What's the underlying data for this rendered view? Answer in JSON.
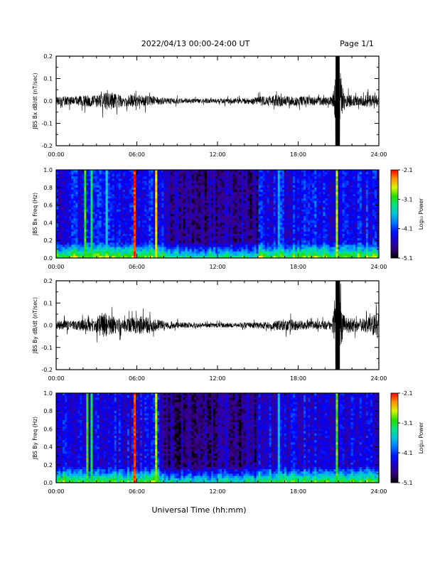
{
  "header": {
    "title": "2022/04/13  00:00-24:00 UT",
    "page": "Page 1/1"
  },
  "footer": {
    "xlabel": "Universal Time (hh:mm)"
  },
  "colorbar": {
    "label": "Log₁₀ Power",
    "tick_labels": [
      "-2.1",
      "-3.1",
      "-4.1",
      "-5.1"
    ],
    "range": [
      -5.1,
      -2.1
    ],
    "colormap": "rainbow"
  },
  "chart_data": [
    {
      "type": "line",
      "ylabel": "JBS Bx dB/dt (nT/sec)",
      "x_unit": "hours UT",
      "xlim": [
        0,
        24
      ],
      "ylim": [
        -0.2,
        0.2
      ],
      "x_tick_labels": [
        "00:00",
        "06:00",
        "12:00",
        "18:00",
        "24:00"
      ],
      "y_tick_labels": [
        "0.2",
        "0.1",
        "0.0",
        "-0.1",
        "-0.2"
      ],
      "x": [
        0.0,
        1.0,
        2.0,
        3.0,
        3.8,
        5.0,
        6.0,
        7.0,
        8.0,
        10.0,
        12.0,
        14.0,
        15.5,
        16.5,
        17.5,
        18.5,
        19.5,
        20.5,
        20.9,
        21.5,
        22.5,
        23.5,
        24.0
      ],
      "envelope": [
        0.03,
        0.03,
        0.035,
        0.04,
        0.06,
        0.035,
        0.04,
        0.035,
        0.02,
        0.015,
        0.015,
        0.02,
        0.03,
        0.035,
        0.03,
        0.03,
        0.025,
        0.03,
        0.2,
        0.04,
        0.035,
        0.04,
        0.04
      ]
    },
    {
      "type": "heatmap",
      "ylabel": "JBS Bx Freq (Hz)",
      "xlim": [
        0,
        24
      ],
      "ylim": [
        0.0,
        1.0
      ],
      "x_tick_labels": [
        "00:00",
        "06:00",
        "12:00",
        "18:00",
        "24:00"
      ],
      "y_tick_labels": [
        "1.0",
        "0.8",
        "0.6",
        "0.4",
        "0.2",
        "0.0"
      ],
      "value_unit": "log10 power",
      "background_level": -4.3,
      "vertical_streaks": [
        {
          "t": 2.2,
          "level": -3.0
        },
        {
          "t": 2.6,
          "level": -3.2
        },
        {
          "t": 3.7,
          "level": -3.5
        },
        {
          "t": 5.8,
          "level": -2.2
        },
        {
          "t": 7.4,
          "level": -2.6
        },
        {
          "t": 16.5,
          "level": -3.7
        },
        {
          "t": 20.9,
          "level": -2.8
        }
      ]
    },
    {
      "type": "line",
      "ylabel": "JBS By dB/dt (nT/sec)",
      "x_unit": "hours UT",
      "xlim": [
        0,
        24
      ],
      "ylim": [
        -0.2,
        0.2
      ],
      "x_tick_labels": [
        "00:00",
        "06:00",
        "12:00",
        "18:00",
        "24:00"
      ],
      "y_tick_labels": [
        "0.2",
        "0.1",
        "0.0",
        "-0.1",
        "-0.2"
      ],
      "x": [
        0.0,
        1.0,
        2.0,
        3.0,
        3.5,
        4.0,
        5.0,
        6.5,
        7.5,
        9.0,
        11.0,
        13.0,
        15.0,
        16.0,
        17.0,
        18.5,
        19.5,
        20.5,
        20.9,
        21.5,
        22.5,
        23.5,
        24.0
      ],
      "envelope": [
        0.03,
        0.03,
        0.035,
        0.05,
        0.09,
        0.06,
        0.04,
        0.06,
        0.035,
        0.02,
        0.015,
        0.015,
        0.02,
        0.025,
        0.04,
        0.03,
        0.025,
        0.03,
        0.2,
        0.05,
        0.04,
        0.06,
        0.1
      ]
    },
    {
      "type": "heatmap",
      "ylabel": "JBS By Freq (Hz)",
      "xlim": [
        0,
        24
      ],
      "ylim": [
        0.0,
        1.0
      ],
      "x_tick_labels": [
        "00:00",
        "06:00",
        "12:00",
        "18:00",
        "24:00"
      ],
      "y_tick_labels": [
        "1.0",
        "0.8",
        "0.6",
        "0.4",
        "0.2",
        "0.0"
      ],
      "value_unit": "log10 power",
      "background_level": -4.4,
      "vertical_streaks": [
        {
          "t": 2.3,
          "level": -3.0
        },
        {
          "t": 2.7,
          "level": -3.2
        },
        {
          "t": 5.8,
          "level": -2.2
        },
        {
          "t": 7.4,
          "level": -2.8
        },
        {
          "t": 16.5,
          "level": -3.6
        },
        {
          "t": 20.9,
          "level": -2.9
        }
      ]
    }
  ]
}
